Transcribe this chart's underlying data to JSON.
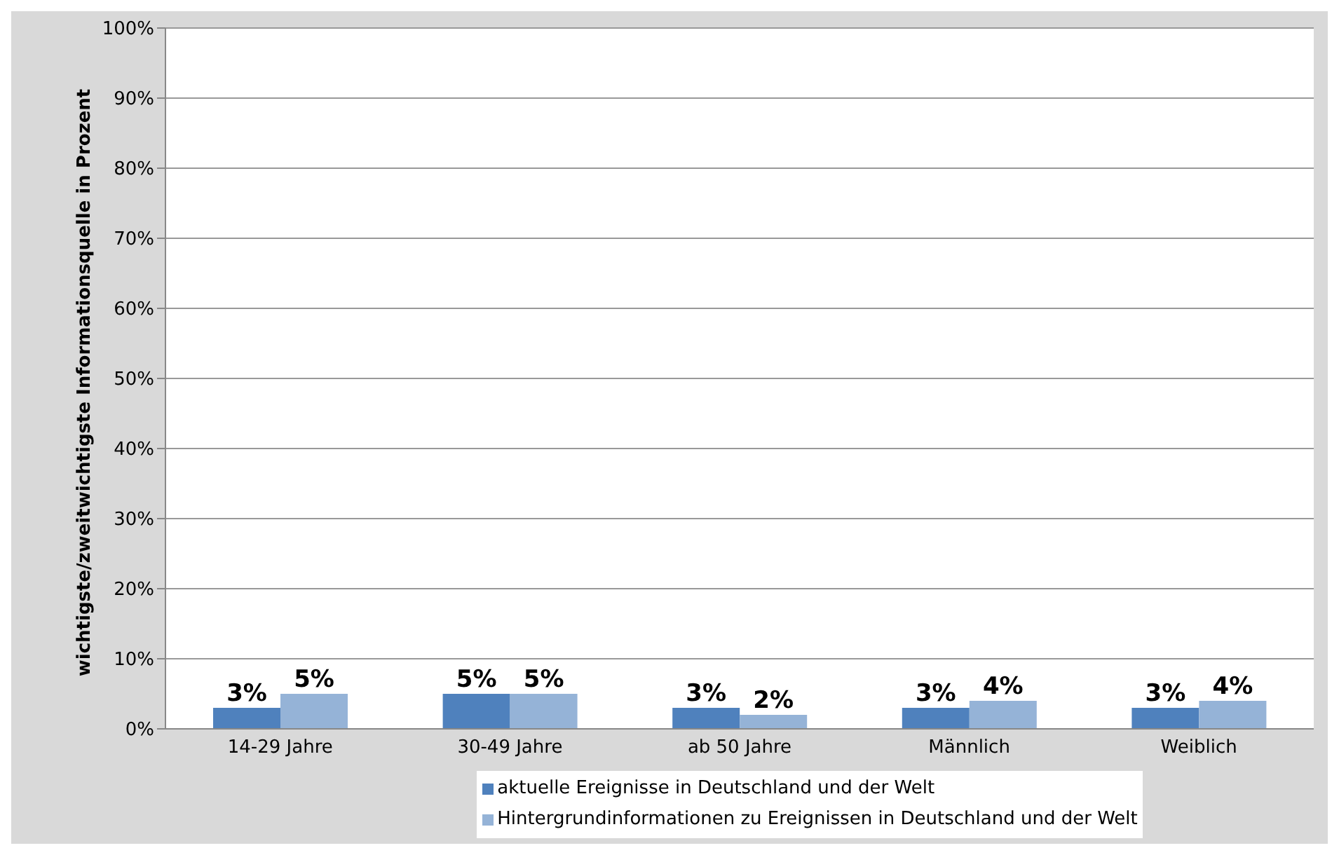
{
  "chart_data": {
    "type": "bar",
    "ylabel": "wichtigste/zweitwichtigste Informationsquelle in Prozent",
    "categories": [
      "14-29 Jahre",
      "30-49 Jahre",
      "ab 50 Jahre",
      "Männlich",
      "Weiblich"
    ],
    "series": [
      {
        "name": "aktuelle Ereignisse in Deutschland und der Welt",
        "color": "#4f81bd",
        "values": [
          3,
          5,
          3,
          3,
          3
        ],
        "value_labels": [
          "3%",
          "5%",
          "3%",
          "3%",
          "3%"
        ]
      },
      {
        "name": "Hintergrundinformationen zu Ereignissen in Deutschland und der Welt",
        "color": "#95b3d7",
        "values": [
          5,
          5,
          2,
          4,
          4
        ],
        "value_labels": [
          "5%",
          "5%",
          "2%",
          "4%",
          "4%"
        ]
      }
    ],
    "ylim": [
      0,
      100
    ],
    "yticks": [
      {
        "value": 0,
        "label": "0%"
      },
      {
        "value": 10,
        "label": "10%"
      },
      {
        "value": 20,
        "label": "20%"
      },
      {
        "value": 30,
        "label": "30%"
      },
      {
        "value": 40,
        "label": "40%"
      },
      {
        "value": 50,
        "label": "50%"
      },
      {
        "value": 60,
        "label": "60%"
      },
      {
        "value": 70,
        "label": "70%"
      },
      {
        "value": 80,
        "label": "80%"
      },
      {
        "value": 90,
        "label": "90%"
      },
      {
        "value": 100,
        "label": "100%"
      }
    ],
    "grid": "y",
    "legend": "bottom"
  }
}
